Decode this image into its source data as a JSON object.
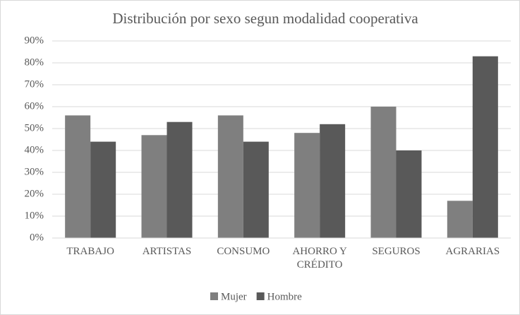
{
  "chart_data": {
    "type": "bar",
    "title": "Distribución por sexo segun modalidad cooperativa",
    "categories": [
      "TRABAJO",
      "ARTISTAS",
      "CONSUMO",
      "AHORRO Y CRÉDITO",
      "SEGUROS",
      "AGRARIAS"
    ],
    "series": [
      {
        "name": "Mujer",
        "color": "#7f7f7f",
        "values": [
          56,
          47,
          56,
          48,
          60,
          17
        ]
      },
      {
        "name": "Hombre",
        "color": "#595959",
        "values": [
          44,
          53,
          44,
          52,
          40,
          83
        ]
      }
    ],
    "ylim": [
      0,
      90
    ],
    "yticks": [
      {
        "value": 0,
        "label": "0%"
      },
      {
        "value": 10,
        "label": "10%"
      },
      {
        "value": 20,
        "label": "20%"
      },
      {
        "value": 30,
        "label": "30%"
      },
      {
        "value": 40,
        "label": "40%"
      },
      {
        "value": 50,
        "label": "50%"
      },
      {
        "value": 60,
        "label": "60%"
      },
      {
        "value": 70,
        "label": "70%"
      },
      {
        "value": 80,
        "label": "80%"
      },
      {
        "value": 90,
        "label": "90%"
      }
    ],
    "grid": true,
    "legend": "bottom"
  }
}
